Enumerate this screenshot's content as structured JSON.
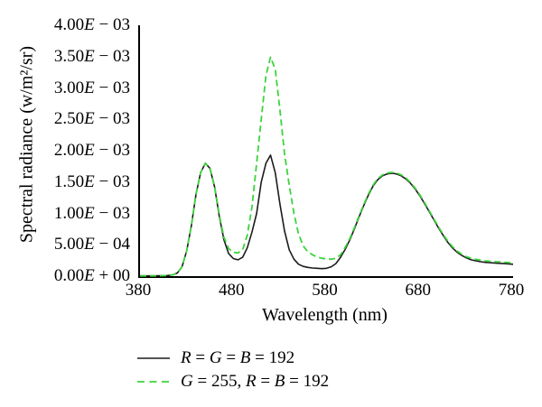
{
  "figure": {
    "background": "#ffffff"
  },
  "chart_data": {
    "type": "line",
    "title": "",
    "xlabel": "Wavelength (nm)",
    "ylabel": "Spectral radiance (w/m²/sr)",
    "xlim": [
      380,
      780
    ],
    "ylim": [
      0,
      0.004
    ],
    "grid": false,
    "legend_position": "below-left",
    "x_ticks": [
      {
        "value": 380,
        "label": "380"
      },
      {
        "value": 480,
        "label": "480"
      },
      {
        "value": 580,
        "label": "580"
      },
      {
        "value": 680,
        "label": "680"
      },
      {
        "value": 780,
        "label": "780"
      }
    ],
    "y_ticks": [
      {
        "value": 0.004,
        "label": "4.00E − 03"
      },
      {
        "value": 0.0035,
        "label": "3.50E − 03"
      },
      {
        "value": 0.003,
        "label": "3.00E − 03"
      },
      {
        "value": 0.0025,
        "label": "2.50E − 03"
      },
      {
        "value": 0.002,
        "label": "2.00E − 03"
      },
      {
        "value": 0.0015,
        "label": "1.50E − 03"
      },
      {
        "value": 0.001,
        "label": "1.00E − 03"
      },
      {
        "value": 0.0005,
        "label": "5.00E − 04"
      },
      {
        "value": 0,
        "label": "0.00E + 00"
      }
    ],
    "wavelengths_nm": [
      380,
      385,
      390,
      395,
      400,
      405,
      410,
      415,
      420,
      425,
      430,
      435,
      440,
      445,
      450,
      455,
      460,
      465,
      470,
      475,
      480,
      485,
      490,
      495,
      500,
      505,
      510,
      515,
      520,
      525,
      530,
      535,
      540,
      545,
      550,
      555,
      560,
      565,
      570,
      575,
      580,
      585,
      590,
      595,
      600,
      605,
      610,
      615,
      620,
      625,
      630,
      635,
      640,
      645,
      650,
      655,
      660,
      665,
      670,
      675,
      680,
      685,
      690,
      695,
      700,
      705,
      710,
      715,
      720,
      725,
      730,
      735,
      740,
      745,
      750,
      755,
      760,
      765,
      770,
      775,
      780
    ],
    "series": [
      {
        "name": "R = G = B = 192",
        "color": "#1c1c1c",
        "style": "solid",
        "width": 1.6,
        "values": [
          5e-06,
          5e-06,
          5e-06,
          5e-06,
          6e-06,
          7e-06,
          1e-05,
          2e-05,
          5e-05,
          0.00015,
          0.0004,
          0.0008,
          0.0013,
          0.00165,
          0.0018,
          0.00172,
          0.00142,
          0.00095,
          0.00058,
          0.00036,
          0.00028,
          0.00026,
          0.0003,
          0.00045,
          0.0007,
          0.001,
          0.0015,
          0.0018,
          0.00193,
          0.00165,
          0.00115,
          0.00072,
          0.00042,
          0.00027,
          0.00019,
          0.000155,
          0.00014,
          0.00013,
          0.000125,
          0.00012,
          0.000125,
          0.00015,
          0.0002,
          0.0003,
          0.00043,
          0.00058,
          0.00076,
          0.00095,
          0.00113,
          0.0013,
          0.00144,
          0.00154,
          0.0016,
          0.00163,
          0.00164,
          0.00163,
          0.0016,
          0.00155,
          0.00148,
          0.00139,
          0.00128,
          0.00116,
          0.00103,
          0.0009,
          0.00077,
          0.00065,
          0.00054,
          0.00045,
          0.00038,
          0.00033,
          0.00029,
          0.00026,
          0.000245,
          0.00023,
          0.00022,
          0.000215,
          0.00021,
          0.000205,
          0.0002,
          0.000195,
          0.00019
        ]
      },
      {
        "name": "G = 255, R = B = 192",
        "color": "#3cd43c",
        "style": "dashed",
        "width": 1.8,
        "values": [
          5e-06,
          5e-06,
          5e-06,
          5e-06,
          6e-06,
          7e-06,
          1e-05,
          2e-05,
          5e-05,
          0.00015,
          0.0004,
          0.0008,
          0.0013,
          0.00165,
          0.0018,
          0.00172,
          0.00143,
          0.00097,
          0.00062,
          0.00044,
          0.00038,
          0.00037,
          0.00042,
          0.00065,
          0.0011,
          0.0018,
          0.0025,
          0.0032,
          0.00349,
          0.0033,
          0.00265,
          0.00195,
          0.00145,
          0.001,
          0.00067,
          0.00048,
          0.00039,
          0.00034,
          0.000305,
          0.000285,
          0.000275,
          0.00027,
          0.000285,
          0.00034,
          0.00046,
          0.0006,
          0.00078,
          0.000965,
          0.001145,
          0.001315,
          0.001455,
          0.001555,
          0.001615,
          0.001645,
          0.001655,
          0.001645,
          0.001615,
          0.001565,
          0.001495,
          0.001405,
          0.001295,
          0.001175,
          0.001045,
          0.000915,
          0.000785,
          0.000665,
          0.00056,
          0.00047,
          0.0004,
          0.00035,
          0.00031,
          0.000285,
          0.000268,
          0.000255,
          0.000245,
          0.000238,
          0.000232,
          0.000227,
          0.000222,
          0.000217,
          0.000212
        ]
      }
    ]
  }
}
